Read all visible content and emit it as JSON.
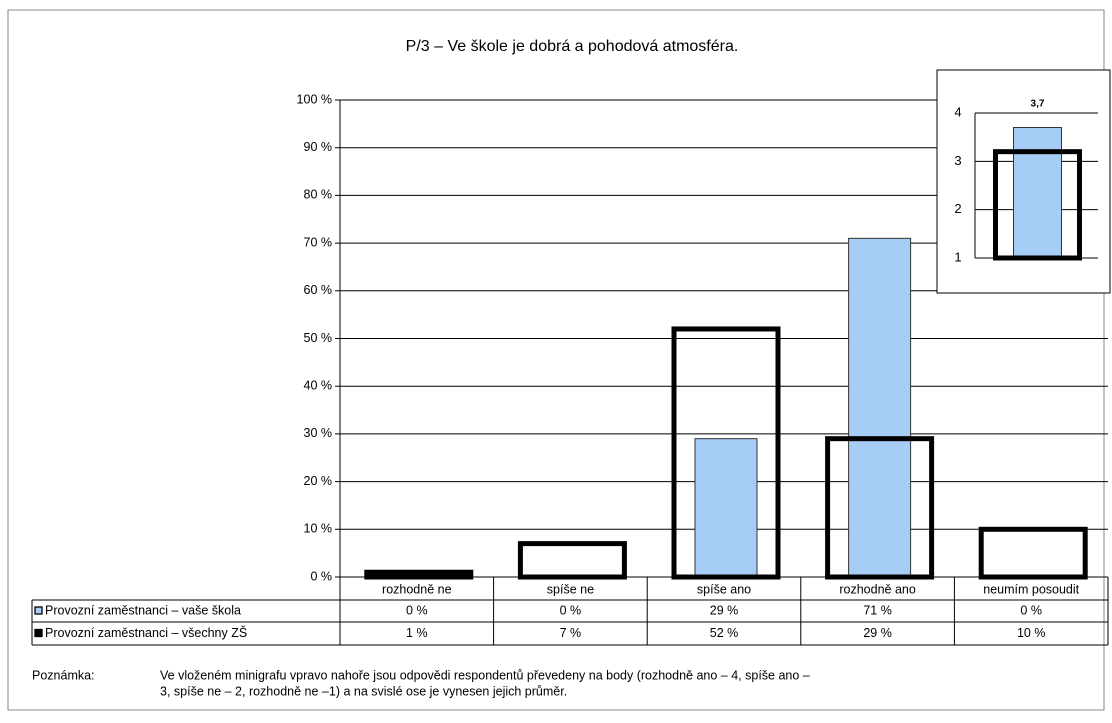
{
  "chart_data": [
    {
      "type": "bar",
      "title": "P/3 – Ve škole je dobrá a pohodová atmosféra.",
      "categories": [
        "rozhodně ne",
        "spíše ne",
        "spíše ano",
        "rozhodně ano",
        "neumím posoudit"
      ],
      "series": [
        {
          "name": "Provozní zaměstnanci – vaše škola",
          "color": "#a6cdf6",
          "values": [
            0,
            0,
            29,
            71,
            0
          ],
          "value_labels": [
            "0 %",
            "0 %",
            "29 %",
            "71 %",
            "0 %"
          ]
        },
        {
          "name": "Provozní zaměstnanci – všechny ZŠ",
          "color": "#000000",
          "values": [
            1,
            7,
            52,
            29,
            10
          ],
          "value_labels": [
            "1 %",
            "7 %",
            "52 %",
            "29 %",
            "10 %"
          ]
        }
      ],
      "ylim": [
        0,
        100
      ],
      "yticks": [
        {
          "value": 0,
          "label": "0 %"
        },
        {
          "value": 10,
          "label": "10 %"
        },
        {
          "value": 20,
          "label": "20 %"
        },
        {
          "value": 30,
          "label": "30 %"
        },
        {
          "value": 40,
          "label": "40 %"
        },
        {
          "value": 50,
          "label": "50 %"
        },
        {
          "value": 60,
          "label": "60 %"
        },
        {
          "value": 70,
          "label": "70 %"
        },
        {
          "value": 80,
          "label": "80 %"
        },
        {
          "value": 90,
          "label": "90 %"
        },
        {
          "value": 100,
          "label": "100 %"
        }
      ],
      "grid": true
    },
    {
      "type": "bar",
      "series": [
        {
          "color": "#a6cdf6",
          "values": [
            3.7
          ],
          "value_labels": [
            "3,7"
          ]
        },
        {
          "color": "#000000",
          "values": [
            3.2
          ]
        }
      ],
      "ylim": [
        1,
        4
      ],
      "yticks": [
        1,
        2,
        3,
        4
      ],
      "grid": true
    }
  ],
  "note": {
    "label": "Poznámka:",
    "lines": [
      "Ve vloženém minigrafu vpravo nahoře jsou odpovědi respondentů převedeny na body (rozhodně ano – 4, spíše ano –",
      "3, spíše ne – 2, rozhodně ne –1) a na svislé ose je vynesen jejich průměr."
    ]
  }
}
